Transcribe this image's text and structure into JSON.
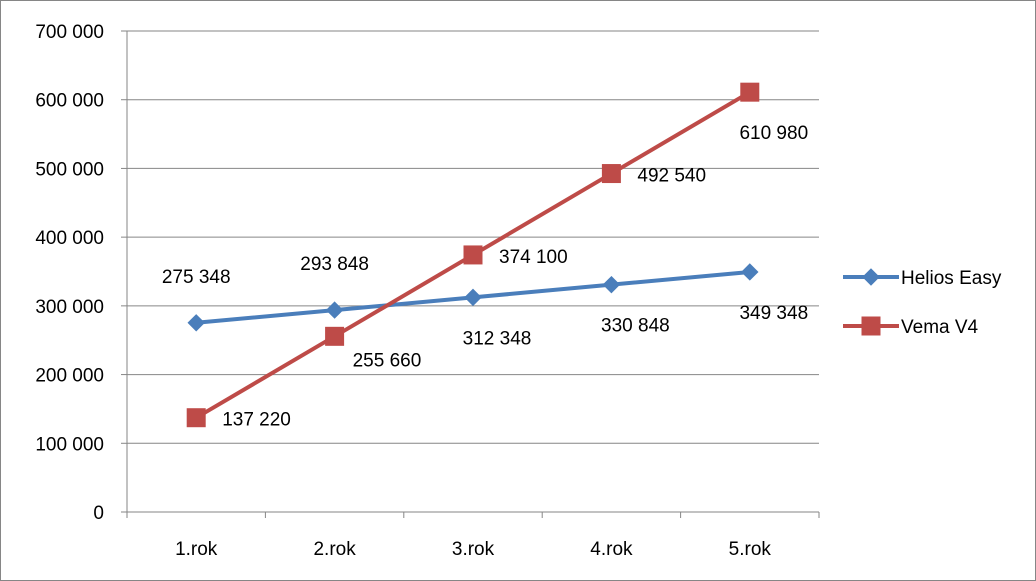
{
  "chart_data": {
    "type": "line",
    "title": "",
    "xlabel": "",
    "ylabel": "",
    "categories": [
      "1.rok",
      "2.rok",
      "3.rok",
      "4.rok",
      "5.rok"
    ],
    "ylim": [
      0,
      700000
    ],
    "y_ticks": [
      0,
      100000,
      200000,
      300000,
      400000,
      500000,
      600000,
      700000
    ],
    "y_tick_labels": [
      "0",
      "100 000",
      "200 000",
      "300 000",
      "400 000",
      "500 000",
      "600 000",
      "700 000"
    ],
    "grid": true,
    "legend_position": "right",
    "series": [
      {
        "name": "Helios Easy",
        "color": "#4a7ebb",
        "marker": "diamond",
        "values": [
          275348,
          293848,
          312348,
          330848,
          349348
        ],
        "labels": [
          "275 348",
          "293 848",
          "312 348",
          "330 848",
          "349 348"
        ],
        "label_positions": [
          "above",
          "above",
          "below",
          "below",
          "below"
        ]
      },
      {
        "name": "Vema V4",
        "color": "#be4b48",
        "marker": "square",
        "values": [
          137220,
          255660,
          374100,
          492540,
          610980
        ],
        "labels": [
          "137 220",
          "255 660",
          "374 100",
          "492 540",
          "610 980"
        ],
        "label_positions": [
          "right",
          "below-right",
          "right",
          "right",
          "below"
        ]
      }
    ]
  }
}
